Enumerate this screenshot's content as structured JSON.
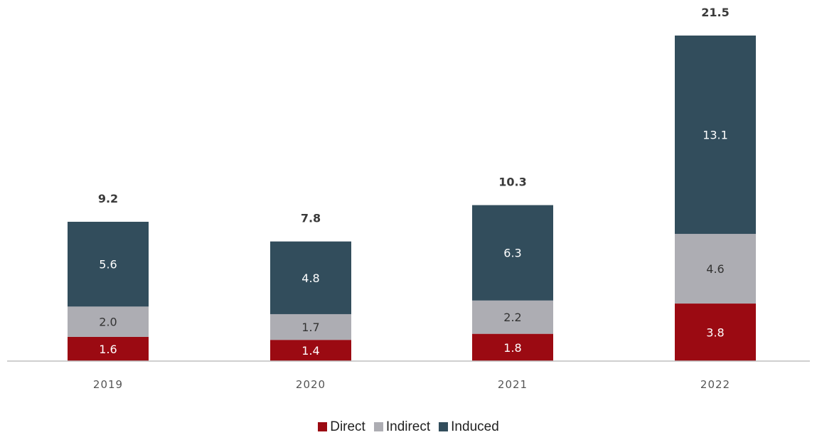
{
  "chart_data": {
    "type": "bar",
    "stacked": true,
    "categories": [
      "2019",
      "2020",
      "2021",
      "2022"
    ],
    "series": [
      {
        "name": "Direct",
        "color": "#9b0a12",
        "values": [
          1.6,
          1.4,
          1.8,
          3.8
        ],
        "labels": [
          "1.6",
          "1.4",
          "1.8",
          "3.8"
        ]
      },
      {
        "name": "Indirect",
        "color": "#adadb3",
        "values": [
          2.0,
          1.7,
          2.2,
          4.6
        ],
        "labels": [
          "2.0",
          "1.7",
          "2.2",
          "4.6"
        ]
      },
      {
        "name": "Induced",
        "color": "#324d5c",
        "values": [
          5.6,
          4.8,
          6.3,
          13.1
        ],
        "labels": [
          "5.6",
          "4.8",
          "6.3",
          "13.1"
        ]
      }
    ],
    "totals": [
      "9.2",
      "7.8",
      "10.3",
      "21.5"
    ],
    "title": "",
    "xlabel": "",
    "ylabel": "",
    "ylim": [
      0,
      21.5
    ],
    "grid": false,
    "legend_position": "bottom"
  }
}
